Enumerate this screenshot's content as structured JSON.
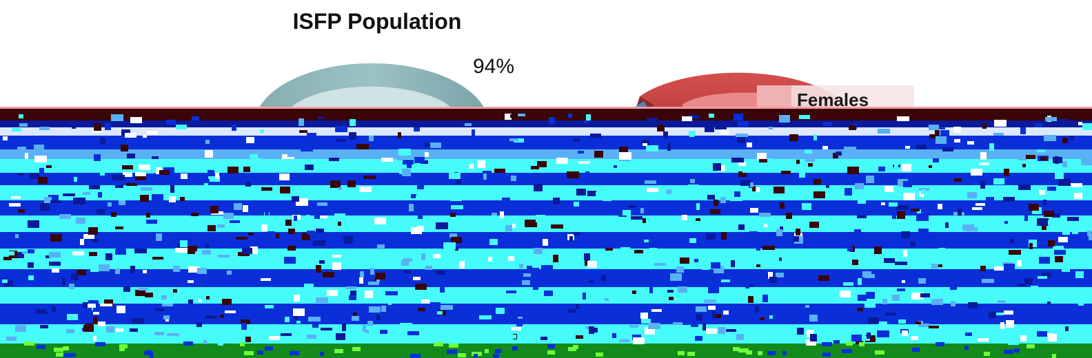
{
  "chart_data": [
    {
      "type": "pie",
      "title": "ISFP Population",
      "slices": [
        {
          "label": "",
          "value": 94,
          "display": "94%",
          "color": "#8fb6ba"
        }
      ]
    },
    {
      "type": "pie",
      "title": "",
      "legend": {
        "entries": [
          "Females"
        ],
        "placement": "top-right"
      },
      "slices": [
        {
          "label": "Females",
          "value": null,
          "color": "#d04b4a"
        },
        {
          "label": "",
          "value": null,
          "color": "#4a86c5"
        }
      ]
    }
  ],
  "artifact_colors": {
    "dark_band": "#3a0508",
    "navy": "#0a2fd8",
    "cyan": "#46fcfa",
    "green": "#138a1c"
  }
}
